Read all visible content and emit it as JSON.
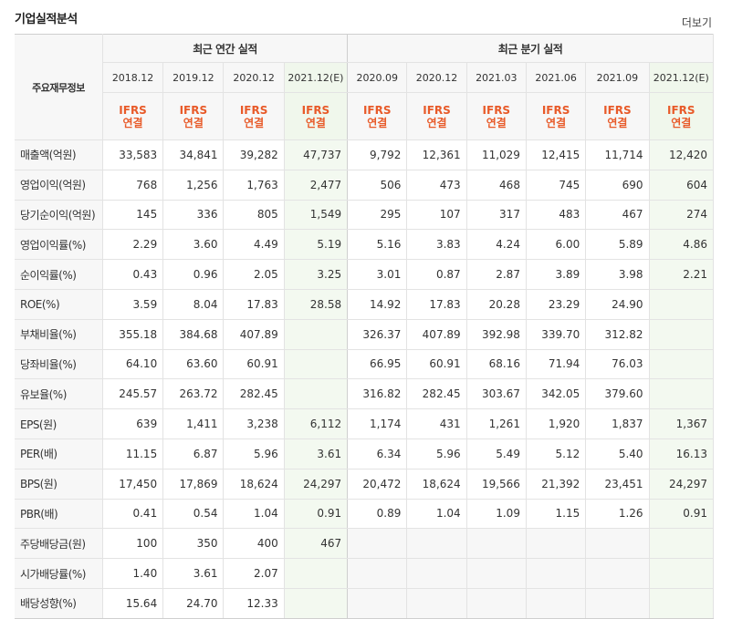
{
  "title": "기업실적분석",
  "more_link": "더보기",
  "table": {
    "corner_label": "주요재무정보",
    "group_annual": "최근 연간 실적",
    "group_quarter": "최근 분기 실적",
    "periods": [
      "2018.12",
      "2019.12",
      "2020.12",
      "2021.12(E)",
      "2020.09",
      "2020.12",
      "2021.03",
      "2021.06",
      "2021.09",
      "2021.12(E)"
    ],
    "ifrs_line1": "IFRS",
    "ifrs_line2": "연결",
    "rows": [
      {
        "label": "매출액(억원)",
        "values": [
          "33,583",
          "34,841",
          "39,282",
          "47,737",
          "9,792",
          "12,361",
          "11,029",
          "12,415",
          "11,714",
          "12,420"
        ]
      },
      {
        "label": "영업이익(억원)",
        "values": [
          "768",
          "1,256",
          "1,763",
          "2,477",
          "506",
          "473",
          "468",
          "745",
          "690",
          "604"
        ]
      },
      {
        "label": "당기순이익(억원)",
        "values": [
          "145",
          "336",
          "805",
          "1,549",
          "295",
          "107",
          "317",
          "483",
          "467",
          "274"
        ]
      },
      {
        "label": "영업이익률(%)",
        "values": [
          "2.29",
          "3.60",
          "4.49",
          "5.19",
          "5.16",
          "3.83",
          "4.24",
          "6.00",
          "5.89",
          "4.86"
        ]
      },
      {
        "label": "순이익률(%)",
        "values": [
          "0.43",
          "0.96",
          "2.05",
          "3.25",
          "3.01",
          "0.87",
          "2.87",
          "3.89",
          "3.98",
          "2.21"
        ]
      },
      {
        "label": "ROE(%)",
        "values": [
          "3.59",
          "8.04",
          "17.83",
          "28.58",
          "14.92",
          "17.83",
          "20.28",
          "23.29",
          "24.90",
          ""
        ]
      },
      {
        "label": "부채비율(%)",
        "values": [
          "355.18",
          "384.68",
          "407.89",
          "",
          "326.37",
          "407.89",
          "392.98",
          "339.70",
          "312.82",
          ""
        ]
      },
      {
        "label": "당좌비율(%)",
        "values": [
          "64.10",
          "63.60",
          "60.91",
          "",
          "66.95",
          "60.91",
          "68.16",
          "71.94",
          "76.03",
          ""
        ]
      },
      {
        "label": "유보율(%)",
        "values": [
          "245.57",
          "263.72",
          "282.45",
          "",
          "316.82",
          "282.45",
          "303.67",
          "342.05",
          "379.60",
          ""
        ]
      },
      {
        "label": "EPS(원)",
        "values": [
          "639",
          "1,411",
          "3,238",
          "6,112",
          "1,174",
          "431",
          "1,261",
          "1,920",
          "1,837",
          "1,367"
        ]
      },
      {
        "label": "PER(배)",
        "values": [
          "11.15",
          "6.87",
          "5.96",
          "3.61",
          "6.34",
          "5.96",
          "5.49",
          "5.12",
          "5.40",
          "16.13"
        ]
      },
      {
        "label": "BPS(원)",
        "values": [
          "17,450",
          "17,869",
          "18,624",
          "24,297",
          "20,472",
          "18,624",
          "19,566",
          "21,392",
          "23,451",
          "24,297"
        ]
      },
      {
        "label": "PBR(배)",
        "values": [
          "0.41",
          "0.54",
          "1.04",
          "0.91",
          "0.89",
          "1.04",
          "1.09",
          "1.15",
          "1.26",
          "0.91"
        ]
      },
      {
        "label": "주당배당금(원)",
        "values": [
          "100",
          "350",
          "400",
          "467",
          "",
          "",
          "",
          "",
          "",
          ""
        ]
      },
      {
        "label": "시가배당률(%)",
        "values": [
          "1.40",
          "3.61",
          "2.07",
          "",
          "",
          "",
          "",
          "",
          "",
          ""
        ]
      },
      {
        "label": "배당성향(%)",
        "values": [
          "15.64",
          "24.70",
          "12.33",
          "",
          "",
          "",
          "",
          "",
          "",
          ""
        ]
      }
    ]
  }
}
